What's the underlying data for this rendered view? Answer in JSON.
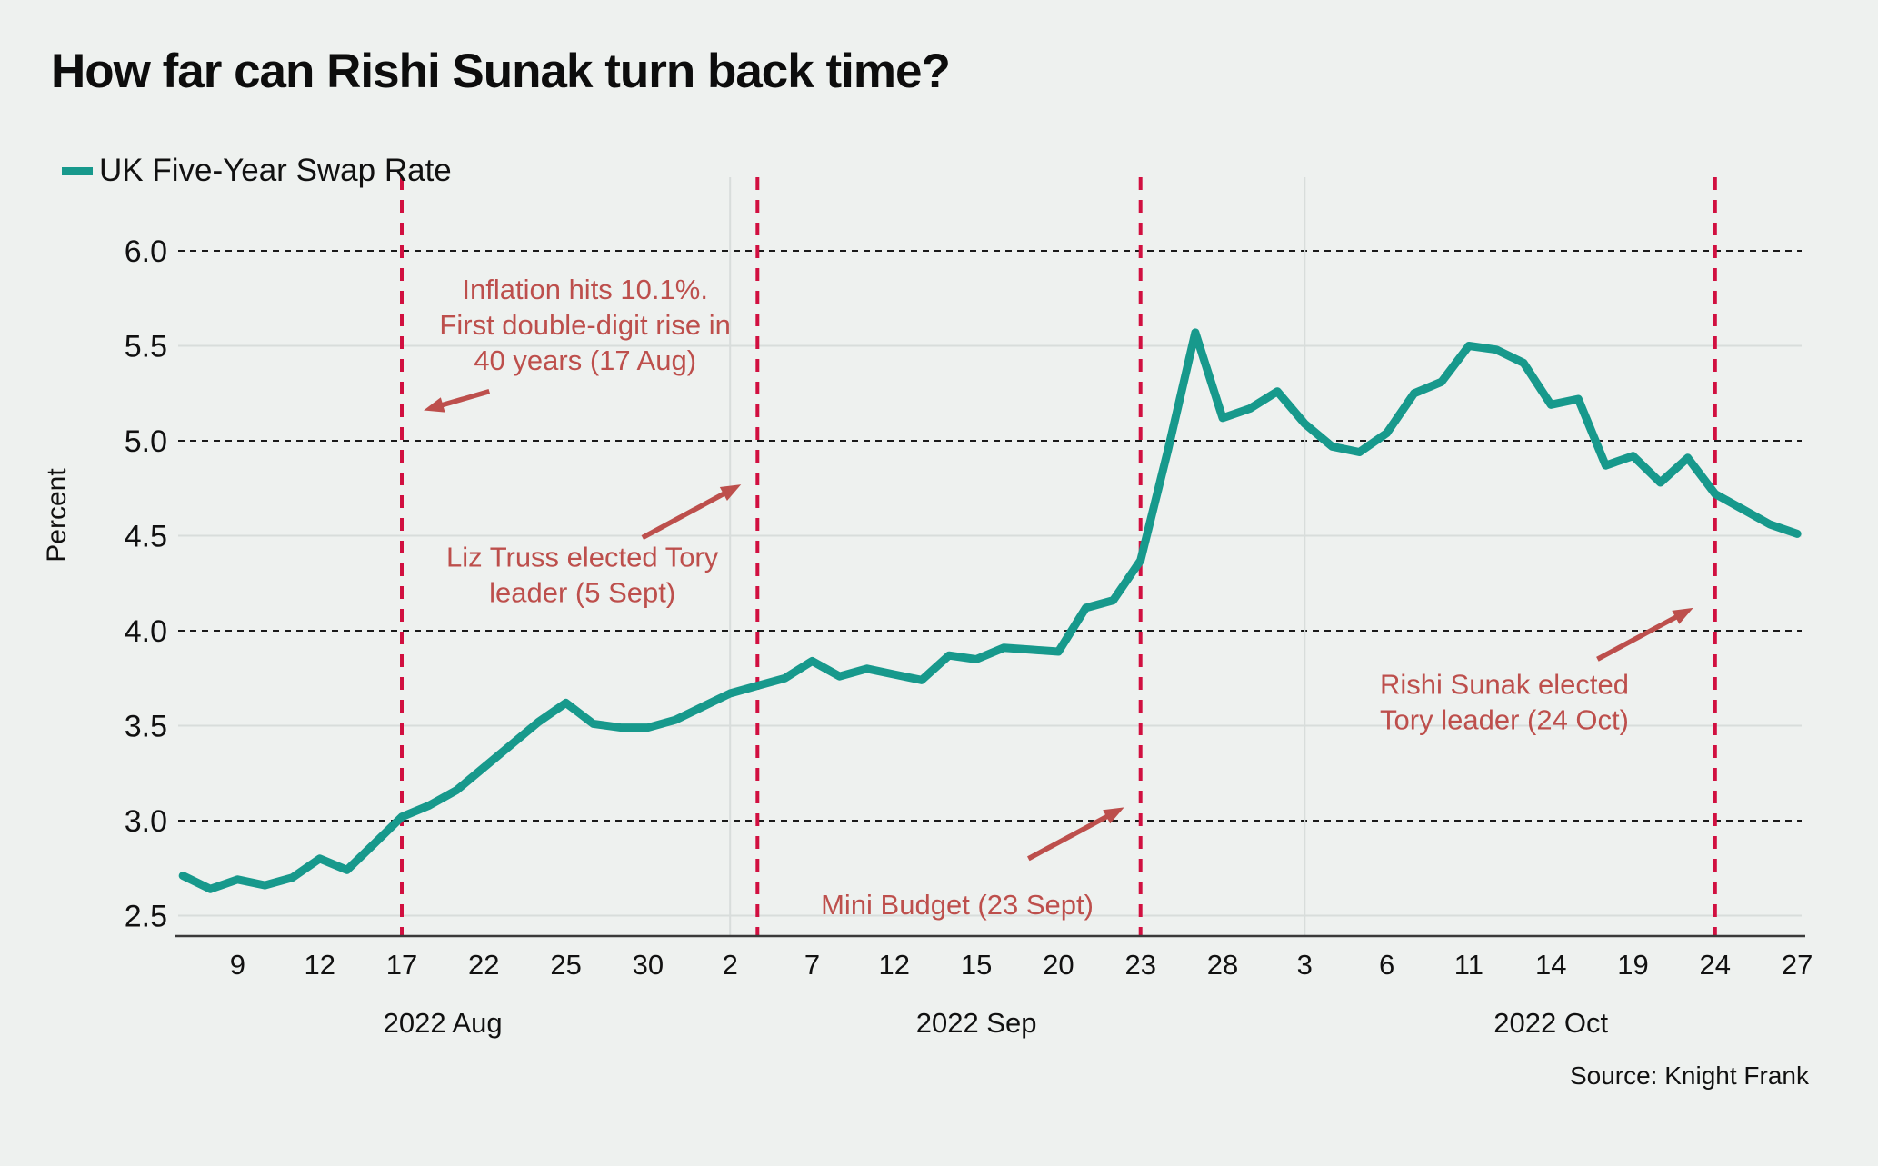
{
  "header": {
    "title": "How far can Rishi Sunak turn back time?",
    "legend_label": "UK Five-Year Swap Rate"
  },
  "source": "Source: Knight Frank",
  "colors": {
    "background": "#eef1ef",
    "series_line": "#17998c",
    "event_line": "#d11040",
    "annotation": "#bd4f4c",
    "grid_dashed": "#1a1a1a",
    "grid_solid": "#d8dddb",
    "axis": "#3a3a3a",
    "text": "#111111"
  },
  "chart_data": {
    "type": "line",
    "title": "How far can Rishi Sunak turn back time?",
    "xlabel": "",
    "ylabel": "Percent",
    "ylim": [
      2.3,
      6.4
    ],
    "grid": "horizontal",
    "legend_position": "top-left",
    "yticks": [
      {
        "value": 2.5,
        "line": "solid"
      },
      {
        "value": 3.0,
        "line": "dashed"
      },
      {
        "value": 3.5,
        "line": "solid"
      },
      {
        "value": 4.0,
        "line": "dashed"
      },
      {
        "value": 4.5,
        "line": "solid"
      },
      {
        "value": 5.0,
        "line": "dashed"
      },
      {
        "value": 5.5,
        "line": "solid"
      },
      {
        "value": 6.0,
        "line": "dashed"
      }
    ],
    "xticks": [
      {
        "label": "9",
        "index": 2
      },
      {
        "label": "12",
        "index": 5
      },
      {
        "label": "17",
        "index": 8
      },
      {
        "label": "22",
        "index": 11
      },
      {
        "label": "25",
        "index": 14
      },
      {
        "label": "30",
        "index": 17
      },
      {
        "label": "2",
        "index": 20
      },
      {
        "label": "7",
        "index": 23
      },
      {
        "label": "12",
        "index": 26
      },
      {
        "label": "15",
        "index": 29
      },
      {
        "label": "20",
        "index": 32
      },
      {
        "label": "23",
        "index": 35
      },
      {
        "label": "28",
        "index": 38
      },
      {
        "label": "3",
        "index": 41
      },
      {
        "label": "6",
        "index": 44
      },
      {
        "label": "11",
        "index": 47
      },
      {
        "label": "14",
        "index": 50
      },
      {
        "label": "19",
        "index": 53
      },
      {
        "label": "24",
        "index": 56
      },
      {
        "label": "27",
        "index": 59
      }
    ],
    "month_labels": [
      {
        "label": "2022 Aug",
        "index": 9.5
      },
      {
        "label": "2022 Sep",
        "index": 29
      },
      {
        "label": "2022 Oct",
        "index": 50
      }
    ],
    "month_separators": [
      20,
      41
    ],
    "series": [
      {
        "name": "UK Five-Year Swap Rate",
        "points": [
          {
            "date": "Aug 5",
            "value": 2.71
          },
          {
            "date": "Aug 8",
            "value": 2.64
          },
          {
            "date": "Aug 9",
            "value": 2.69
          },
          {
            "date": "Aug 10",
            "value": 2.66
          },
          {
            "date": "Aug 11",
            "value": 2.7
          },
          {
            "date": "Aug 12",
            "value": 2.8
          },
          {
            "date": "Aug 15",
            "value": 2.74
          },
          {
            "date": "Aug 16",
            "value": 2.88
          },
          {
            "date": "Aug 17",
            "value": 3.02
          },
          {
            "date": "Aug 18",
            "value": 3.08
          },
          {
            "date": "Aug 19",
            "value": 3.16
          },
          {
            "date": "Aug 22",
            "value": 3.28
          },
          {
            "date": "Aug 23",
            "value": 3.4
          },
          {
            "date": "Aug 24",
            "value": 3.52
          },
          {
            "date": "Aug 25",
            "value": 3.62
          },
          {
            "date": "Aug 26",
            "value": 3.51
          },
          {
            "date": "Aug 29",
            "value": 3.49
          },
          {
            "date": "Aug 30",
            "value": 3.49
          },
          {
            "date": "Aug 31",
            "value": 3.53
          },
          {
            "date": "Sep 1",
            "value": 3.6
          },
          {
            "date": "Sep 2",
            "value": 3.67
          },
          {
            "date": "Sep 5",
            "value": 3.71
          },
          {
            "date": "Sep 6",
            "value": 3.75
          },
          {
            "date": "Sep 7",
            "value": 3.84
          },
          {
            "date": "Sep 8",
            "value": 3.76
          },
          {
            "date": "Sep 9",
            "value": 3.8
          },
          {
            "date": "Sep 12",
            "value": 3.77
          },
          {
            "date": "Sep 13",
            "value": 3.74
          },
          {
            "date": "Sep 14",
            "value": 3.87
          },
          {
            "date": "Sep 15",
            "value": 3.85
          },
          {
            "date": "Sep 16",
            "value": 3.91
          },
          {
            "date": "Sep 19",
            "value": 3.9
          },
          {
            "date": "Sep 20",
            "value": 3.89
          },
          {
            "date": "Sep 21",
            "value": 4.12
          },
          {
            "date": "Sep 22",
            "value": 4.16
          },
          {
            "date": "Sep 23",
            "value": 4.37
          },
          {
            "date": "Sep 26",
            "value": 4.95
          },
          {
            "date": "Sep 27",
            "value": 5.57
          },
          {
            "date": "Sep 28",
            "value": 5.12
          },
          {
            "date": "Sep 29",
            "value": 5.17
          },
          {
            "date": "Sep 30",
            "value": 5.26
          },
          {
            "date": "Oct 3",
            "value": 5.09
          },
          {
            "date": "Oct 4",
            "value": 4.97
          },
          {
            "date": "Oct 5",
            "value": 4.94
          },
          {
            "date": "Oct 6",
            "value": 5.04
          },
          {
            "date": "Oct 7",
            "value": 5.25
          },
          {
            "date": "Oct 10",
            "value": 5.31
          },
          {
            "date": "Oct 11",
            "value": 5.5
          },
          {
            "date": "Oct 12",
            "value": 5.48
          },
          {
            "date": "Oct 13",
            "value": 5.41
          },
          {
            "date": "Oct 14",
            "value": 5.19
          },
          {
            "date": "Oct 17",
            "value": 5.22
          },
          {
            "date": "Oct 18",
            "value": 4.87
          },
          {
            "date": "Oct 19",
            "value": 4.92
          },
          {
            "date": "Oct 20",
            "value": 4.78
          },
          {
            "date": "Oct 21",
            "value": 4.91
          },
          {
            "date": "Oct 24",
            "value": 4.72
          },
          {
            "date": "Oct 25",
            "value": 4.64
          },
          {
            "date": "Oct 26",
            "value": 4.56
          },
          {
            "date": "Oct 27",
            "value": 4.51
          }
        ]
      }
    ],
    "events": [
      {
        "name": "inflation-10-1",
        "index": 8,
        "lines": [
          "Inflation hits 10.1%.",
          "First double-digit rise in",
          "40 years (17 Aug)"
        ],
        "text_index": 14.7,
        "text_value": 5.8,
        "arrow": {
          "from": [
            11.2,
            5.26
          ],
          "to": [
            8.8,
            5.16
          ]
        }
      },
      {
        "name": "liz-truss-elected",
        "index": 21,
        "lines": [
          "Liz Truss elected Tory",
          "leader (5 Sept)"
        ],
        "text_index": 14.6,
        "text_value": 4.39,
        "arrow": {
          "from": [
            16.8,
            4.49
          ],
          "to": [
            20.4,
            4.77
          ]
        }
      },
      {
        "name": "mini-budget",
        "index": 35,
        "lines": [
          "Mini Budget (23 Sept)"
        ],
        "text_index": 28.3,
        "text_value": 2.56,
        "arrow": {
          "from": [
            30.9,
            2.8
          ],
          "to": [
            34.4,
            3.07
          ]
        }
      },
      {
        "name": "rishi-sunak-elected",
        "index": 56,
        "lines": [
          "Rishi Sunak elected",
          "Tory leader (24 Oct)"
        ],
        "text_index": 48.3,
        "text_value": 3.72,
        "arrow": {
          "from": [
            51.7,
            3.85
          ],
          "to": [
            55.2,
            4.12
          ]
        }
      }
    ]
  }
}
